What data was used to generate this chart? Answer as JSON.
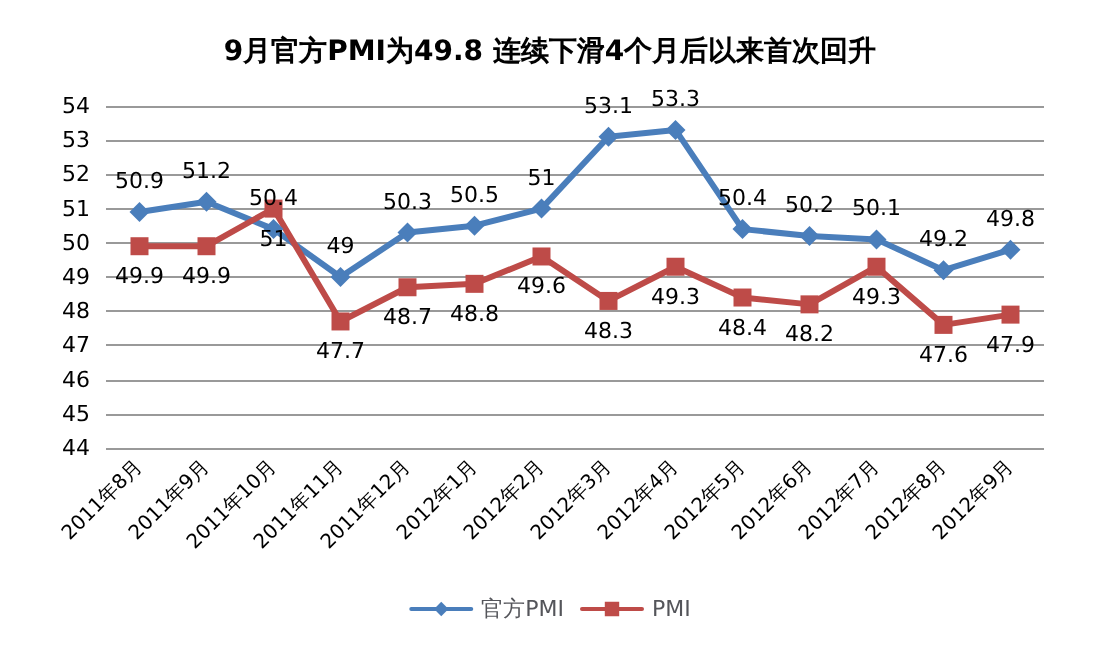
{
  "chart_data": {
    "type": "line",
    "title": "9月官方PMI为49.8 连续下滑4个月后以来首次回升",
    "categories": [
      "2011年8月",
      "2011年9月",
      "2011年10月",
      "2011年11月",
      "2011年12月",
      "2012年1月",
      "2012年2月",
      "2012年3月",
      "2012年4月",
      "2012年5月",
      "2012年6月",
      "2012年7月",
      "2012年8月",
      "2012年9月"
    ],
    "series": [
      {
        "name": "官方PMI",
        "color": "#4a7ebb",
        "marker": "diamond",
        "values": [
          50.9,
          51.2,
          50.4,
          49,
          50.3,
          50.5,
          51,
          53.1,
          53.3,
          50.4,
          50.2,
          50.1,
          49.2,
          49.8
        ]
      },
      {
        "name": "PMI",
        "color": "#be4b48",
        "marker": "square",
        "values": [
          49.9,
          49.9,
          51,
          47.7,
          48.7,
          48.8,
          49.6,
          48.3,
          49.3,
          48.4,
          48.2,
          49.3,
          47.6,
          47.9
        ]
      }
    ],
    "ylim": [
      44,
      54
    ],
    "yticks": [
      44,
      45,
      46,
      47,
      48,
      49,
      50,
      51,
      52,
      53,
      54
    ],
    "grid": "y",
    "legend": "bottom",
    "data_labels": true,
    "line_style": "solid"
  }
}
